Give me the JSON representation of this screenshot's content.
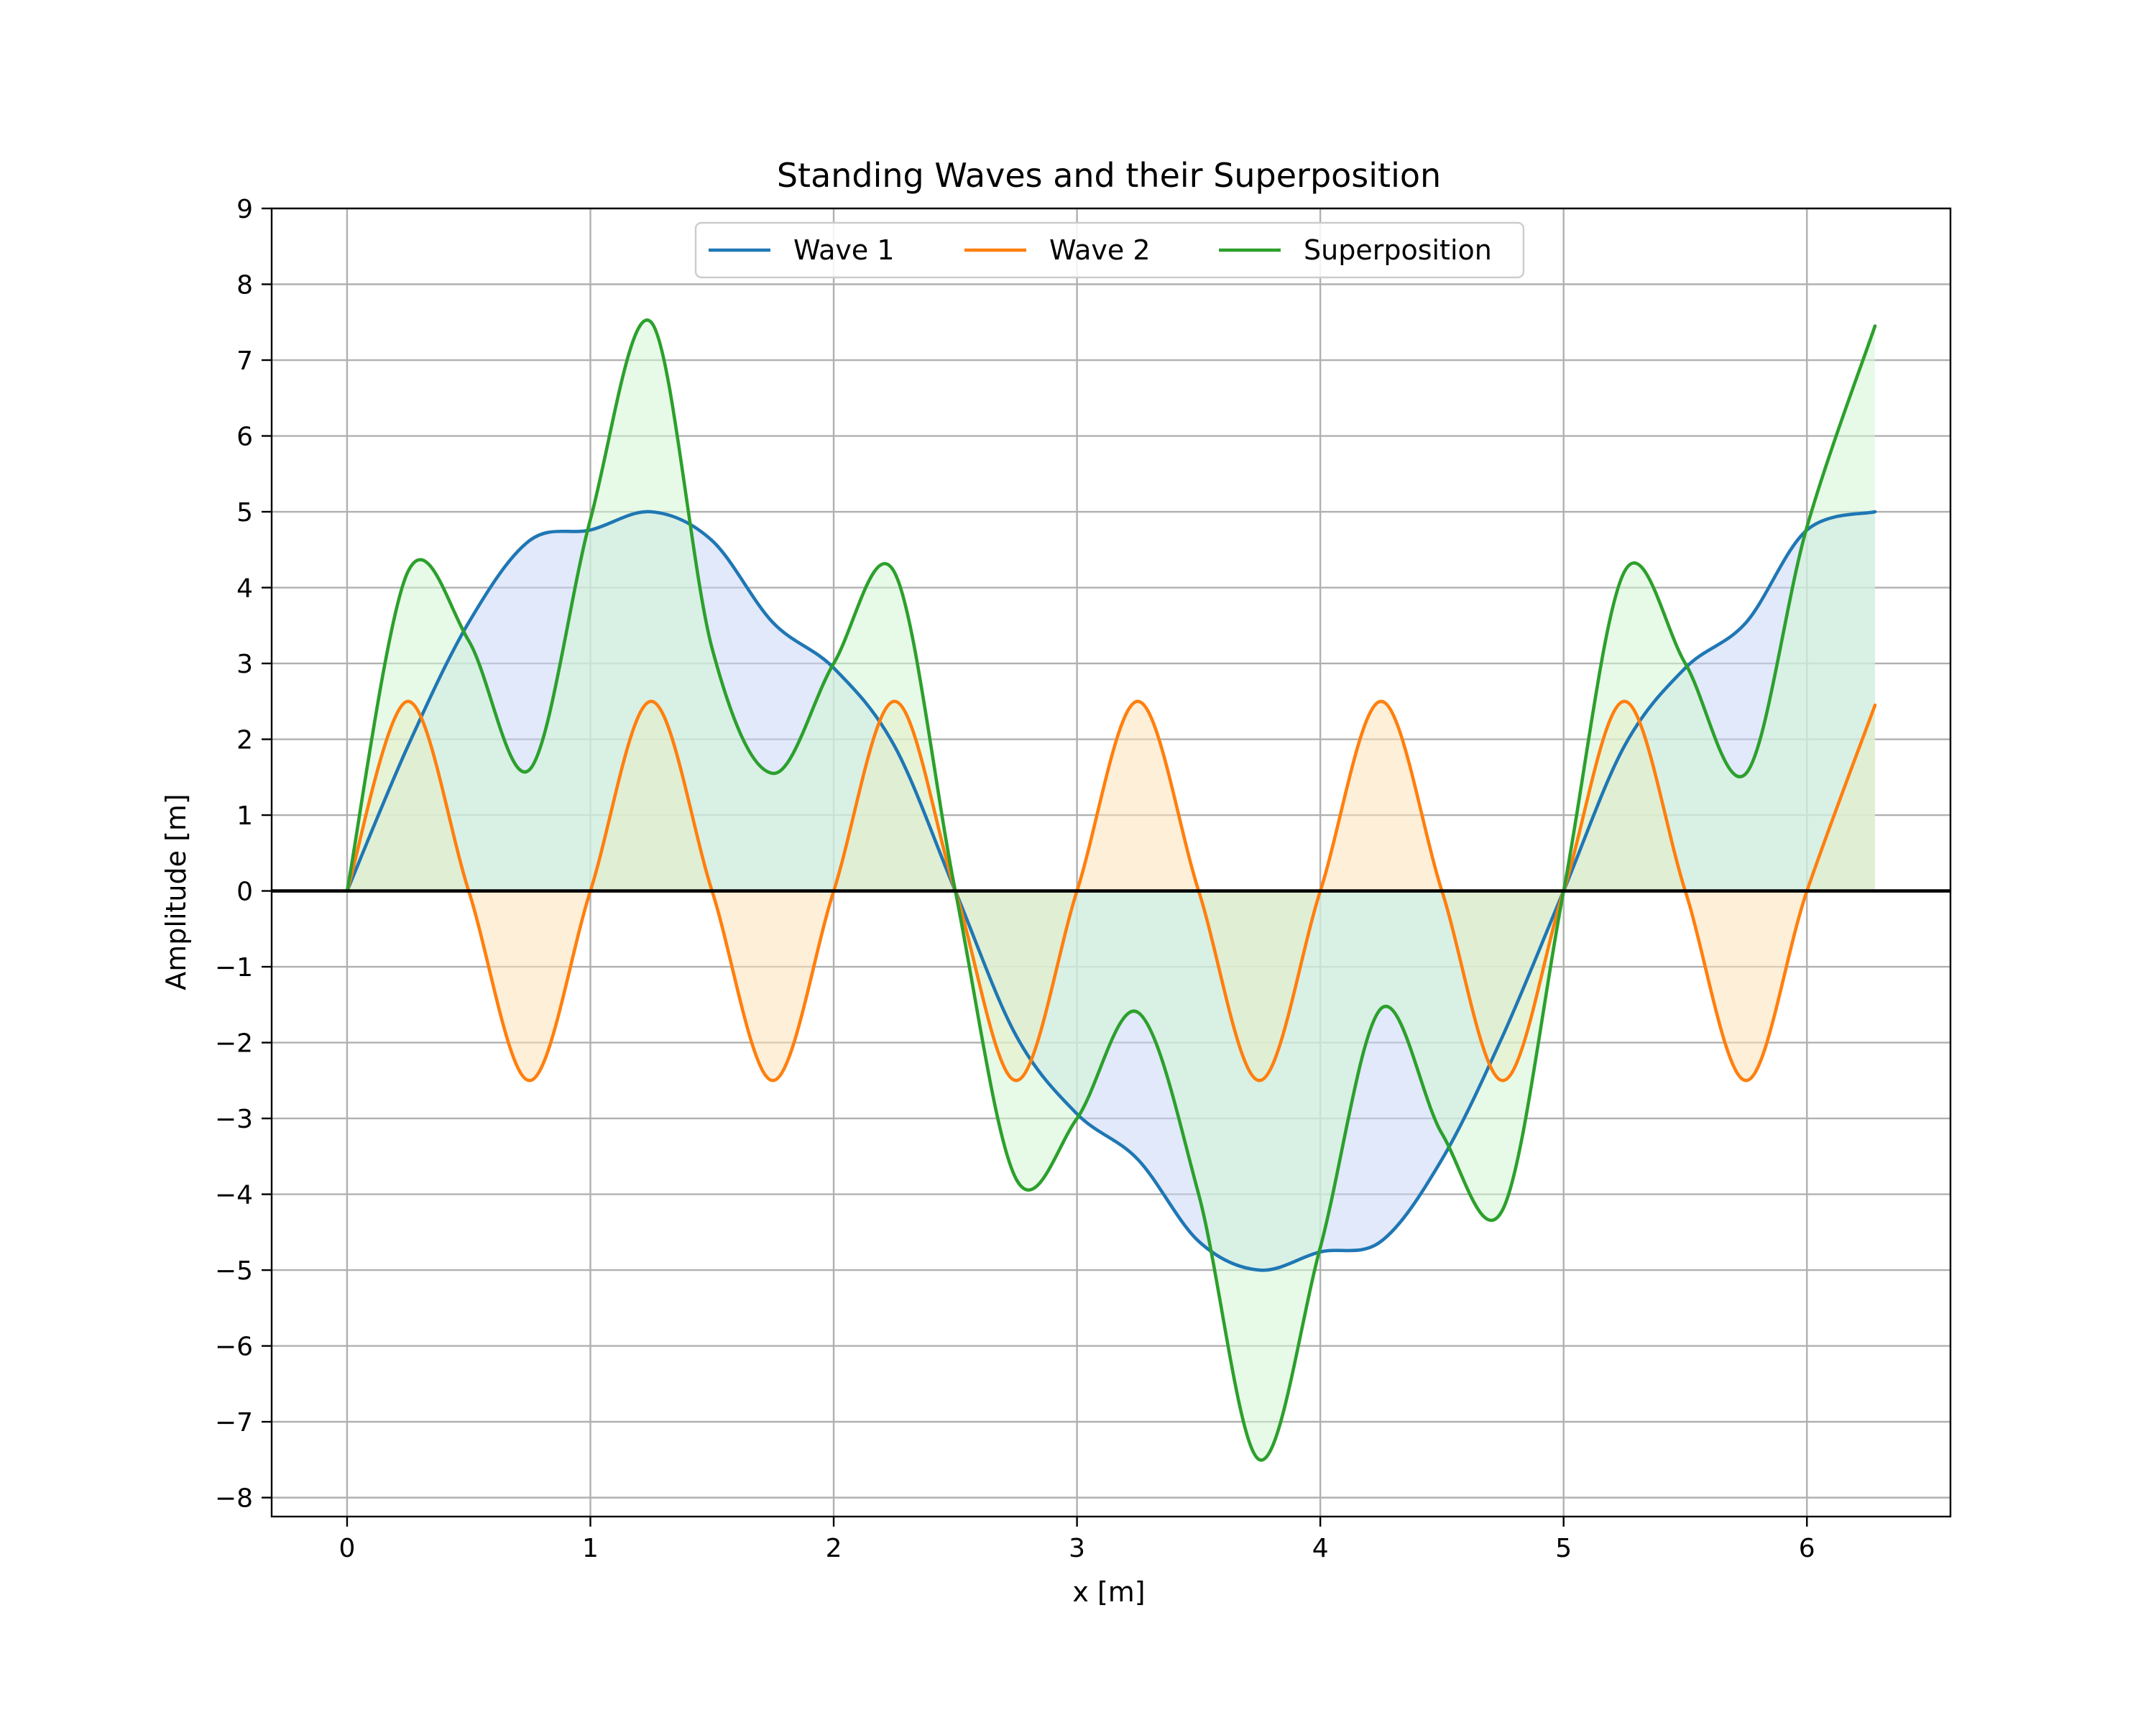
{
  "chart_data": {
    "type": "line",
    "title": "Standing Waves and their Superposition",
    "xlabel": "x [m]",
    "ylabel": "Amplitude [m]",
    "xlim": [
      -0.31,
      6.59
    ],
    "ylim": [
      -8.25,
      9
    ],
    "xticks": [
      0,
      1,
      2,
      3,
      4,
      5,
      6
    ],
    "yticks": [
      -8,
      -7,
      -6,
      -5,
      -4,
      -3,
      -2,
      -1,
      0,
      1,
      2,
      3,
      4,
      5,
      6,
      7,
      8,
      9
    ],
    "xtick_labels": [
      "0",
      "1",
      "2",
      "3",
      "4",
      "5",
      "6"
    ],
    "ytick_labels": [
      "−8",
      "−7",
      "−6",
      "−5",
      "−4",
      "−3",
      "−2",
      "−1",
      "0",
      "1",
      "2",
      "3",
      "4",
      "5",
      "6",
      "7",
      "8",
      "9"
    ],
    "grid": true,
    "zero_line": true,
    "legend_position": "top-center",
    "legend_columns": 3,
    "fill_to_zero": true,
    "x": [
      0,
      0.25,
      0.5,
      0.75,
      1,
      1.25,
      1.5,
      1.75,
      2,
      2.25,
      2.5,
      2.75,
      3,
      3.25,
      3.5,
      3.75,
      4,
      4.25,
      4.5,
      4.75,
      5,
      5.25,
      5.5,
      5.75,
      6,
      6.28
    ],
    "series": [
      {
        "name": "Wave 1",
        "color": "#1f77b4",
        "fill_color": "#c8d7f5",
        "values": [
          0,
          1.91,
          3.54,
          4.62,
          4.76,
          5.0,
          4.62,
          3.54,
          2.94,
          1.91,
          0,
          -1.91,
          -2.94,
          -3.54,
          -4.62,
          -5.0,
          -4.76,
          -4.62,
          -3.54,
          -1.91,
          0,
          1.91,
          2.94,
          3.54,
          4.76,
          5.0
        ]
      },
      {
        "name": "Wave 2",
        "color": "#ff7f0e",
        "fill_color": "#fde2b8",
        "values": [
          0,
          2.5,
          0,
          -2.5,
          0,
          2.5,
          0,
          -2.5,
          0,
          2.5,
          0,
          -2.5,
          0,
          2.5,
          0,
          -2.5,
          0,
          2.5,
          0,
          -2.5,
          0,
          2.5,
          0,
          -2.5,
          0,
          2.45
        ]
      },
      {
        "name": "Superposition",
        "color": "#2ca02c",
        "fill_color": "#d4f5d4",
        "values": [
          0,
          4.21,
          3.3,
          1.6,
          4.9,
          7.5,
          3.2,
          1.55,
          3.0,
          4.2,
          0,
          -3.8,
          -3.0,
          -1.6,
          -4.0,
          -7.5,
          -4.7,
          -1.55,
          -3.2,
          -4.2,
          0,
          4.21,
          3.0,
          1.55,
          4.8,
          7.45
        ]
      }
    ]
  }
}
